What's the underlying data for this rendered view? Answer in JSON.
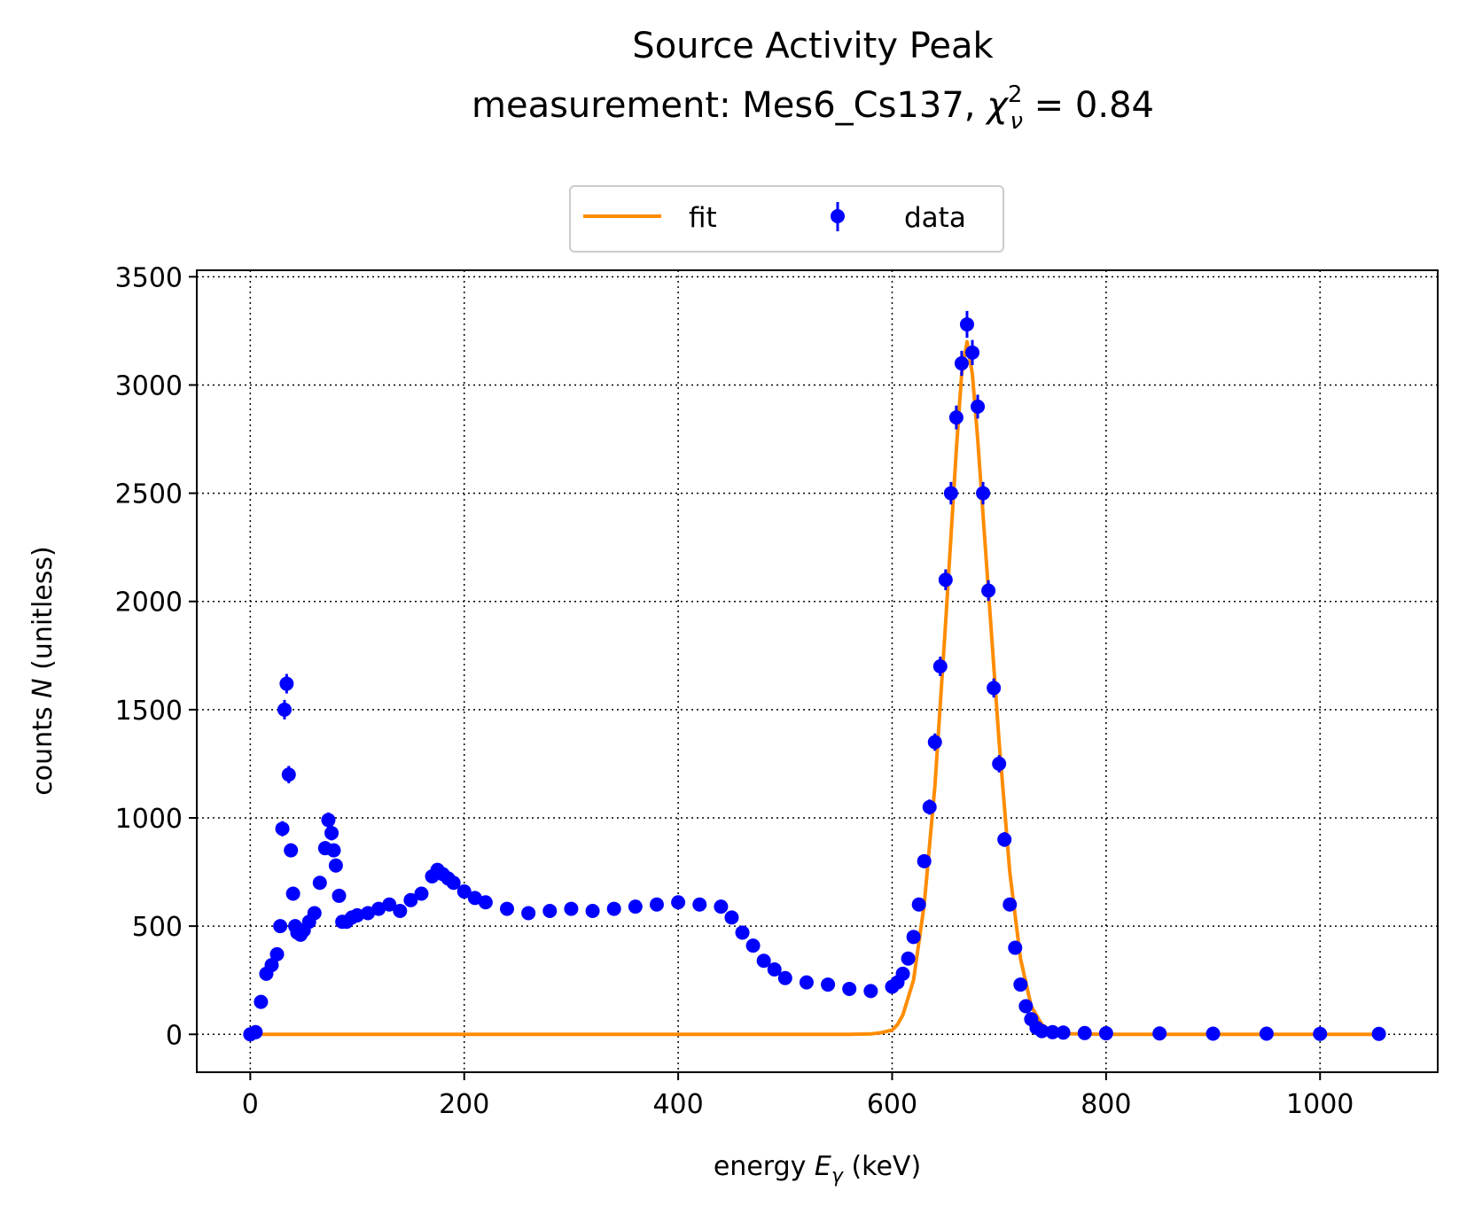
{
  "chart_data": {
    "type": "scatter",
    "title": "Source Activity Peak",
    "subtitle_prefix": "measurement: Mes6_Cs137, ",
    "subtitle_stat_symbol": "χ",
    "subtitle_stat_sup": "2",
    "subtitle_stat_sub": "ν",
    "subtitle_stat_value": " = 0.84",
    "xlabel_prefix": "energy ",
    "xlabel_symbol": "E",
    "xlabel_sub": "γ",
    "xlabel_suffix": " (keV)",
    "ylabel_prefix": "counts ",
    "ylabel_symbol": "N",
    "ylabel_suffix": " (unitless)",
    "xlim": [
      -50,
      1110
    ],
    "ylim": [
      -175,
      3530
    ],
    "xticks": [
      0,
      200,
      400,
      600,
      800,
      1000
    ],
    "yticks": [
      0,
      500,
      1000,
      1500,
      2000,
      2500,
      3000,
      3500
    ],
    "grid": true,
    "legend_position": "upper center, above plot",
    "colors": {
      "data": "#0000ff",
      "fit": "#ff8c00",
      "grid": "#000000"
    },
    "series": [
      {
        "name": "data",
        "style": "points-with-errorbars",
        "x": [
          0,
          5,
          10,
          15,
          20,
          25,
          28,
          30,
          32,
          34,
          36,
          38,
          40,
          42,
          44,
          47,
          50,
          55,
          60,
          65,
          70,
          73,
          76,
          78,
          80,
          83,
          86,
          90,
          95,
          100,
          110,
          120,
          130,
          140,
          150,
          160,
          170,
          175,
          180,
          185,
          190,
          200,
          210,
          220,
          240,
          260,
          280,
          300,
          320,
          340,
          360,
          380,
          400,
          420,
          440,
          450,
          460,
          470,
          480,
          490,
          500,
          520,
          540,
          560,
          580,
          600,
          605,
          610,
          615,
          620,
          625,
          630,
          635,
          640,
          645,
          650,
          655,
          660,
          665,
          670,
          675,
          680,
          685,
          690,
          695,
          700,
          705,
          710,
          715,
          720,
          725,
          730,
          735,
          740,
          750,
          760,
          780,
          800,
          850,
          900,
          950,
          1000,
          1055
        ],
        "y": [
          0,
          10,
          150,
          280,
          320,
          370,
          500,
          950,
          1500,
          1620,
          1200,
          850,
          650,
          500,
          470,
          460,
          480,
          520,
          560,
          700,
          860,
          990,
          930,
          850,
          780,
          640,
          520,
          520,
          540,
          550,
          560,
          580,
          600,
          570,
          620,
          650,
          730,
          760,
          740,
          720,
          700,
          660,
          630,
          610,
          580,
          560,
          570,
          580,
          570,
          580,
          590,
          600,
          610,
          600,
          590,
          540,
          470,
          410,
          340,
          300,
          260,
          240,
          230,
          210,
          200,
          220,
          240,
          280,
          350,
          450,
          600,
          800,
          1050,
          1350,
          1700,
          2100,
          2500,
          2850,
          3100,
          3280,
          3150,
          2900,
          2500,
          2050,
          1600,
          1250,
          900,
          600,
          400,
          230,
          130,
          70,
          30,
          15,
          10,
          8,
          6,
          5,
          4,
          3,
          3,
          2,
          2
        ],
        "yerr": [
          5,
          5,
          15,
          20,
          20,
          22,
          25,
          35,
          45,
          45,
          40,
          32,
          28,
          25,
          24,
          24,
          25,
          25,
          26,
          30,
          32,
          35,
          34,
          32,
          30,
          28,
          25,
          25,
          25,
          26,
          26,
          27,
          28,
          27,
          28,
          28,
          30,
          31,
          30,
          30,
          29,
          28,
          27,
          27,
          26,
          26,
          26,
          26,
          26,
          26,
          26,
          27,
          27,
          27,
          26,
          25,
          24,
          22,
          20,
          19,
          18,
          17,
          17,
          16,
          16,
          17,
          17,
          18,
          20,
          22,
          27,
          30,
          35,
          40,
          45,
          48,
          52,
          55,
          58,
          62,
          58,
          55,
          52,
          48,
          44,
          40,
          34,
          28,
          22,
          16,
          12,
          9,
          6,
          5,
          4,
          4,
          3,
          3,
          3,
          2,
          2,
          2,
          2
        ]
      },
      {
        "name": "fit",
        "style": "line",
        "x": [
          0,
          100,
          200,
          300,
          400,
          500,
          560,
          580,
          590,
          600,
          605,
          610,
          620,
          630,
          640,
          650,
          660,
          665,
          670,
          675,
          680,
          690,
          700,
          710,
          720,
          730,
          740,
          750,
          760,
          800,
          900,
          1000,
          1055
        ],
        "y": [
          0,
          0,
          0,
          0,
          0,
          0,
          0,
          2,
          8,
          20,
          45,
          90,
          250,
          600,
          1150,
          1900,
          2700,
          3050,
          3200,
          3050,
          2750,
          2050,
          1350,
          750,
          350,
          130,
          45,
          12,
          3,
          0,
          0,
          0,
          0
        ]
      }
    ]
  }
}
